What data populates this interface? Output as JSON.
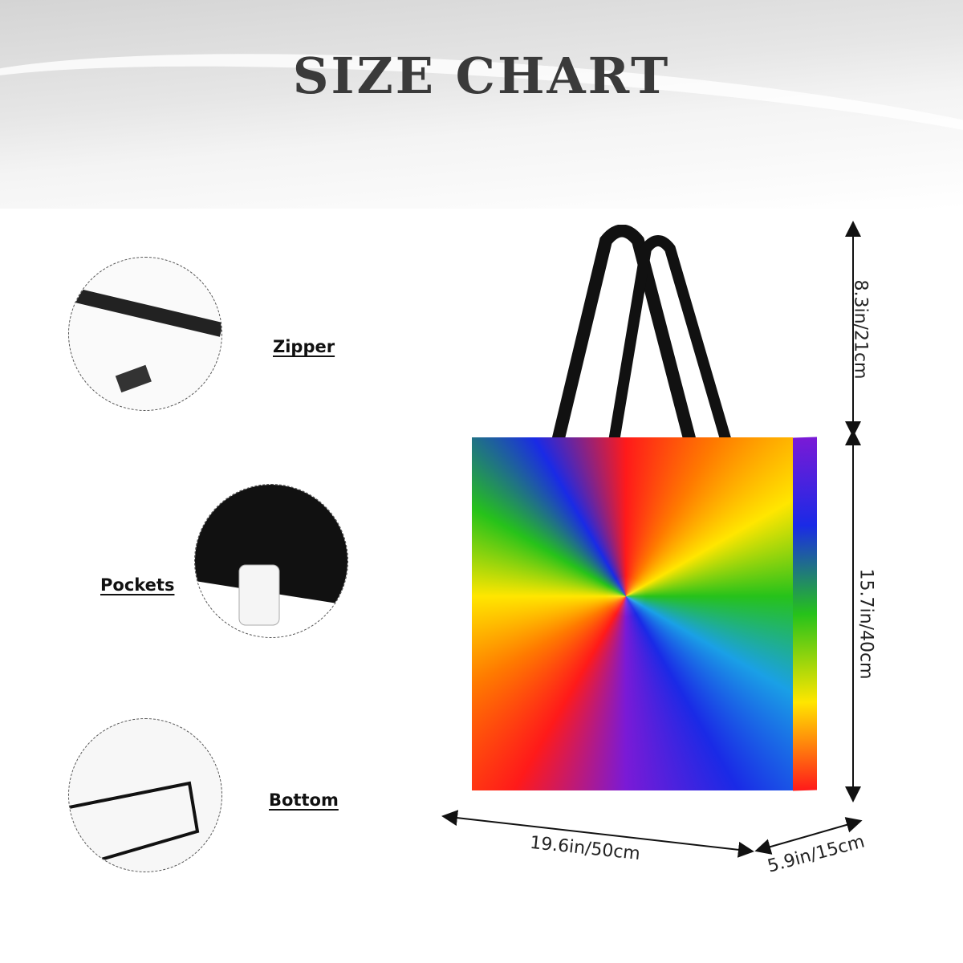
{
  "title": "SIZE CHART",
  "features": [
    {
      "label": "Zipper",
      "icon": "zipper-detail"
    },
    {
      "label": "Pockets",
      "icon": "pocket-detail"
    },
    {
      "label": "Bottom",
      "icon": "bottom-detail"
    }
  ],
  "dimensions": {
    "handle": "8.3in/21cm",
    "height": "15.7in/40cm",
    "width": "19.6in/50cm",
    "depth": "5.9in/15cm"
  },
  "colors": {
    "title": "#3a3a3a",
    "handle": "#111111"
  }
}
